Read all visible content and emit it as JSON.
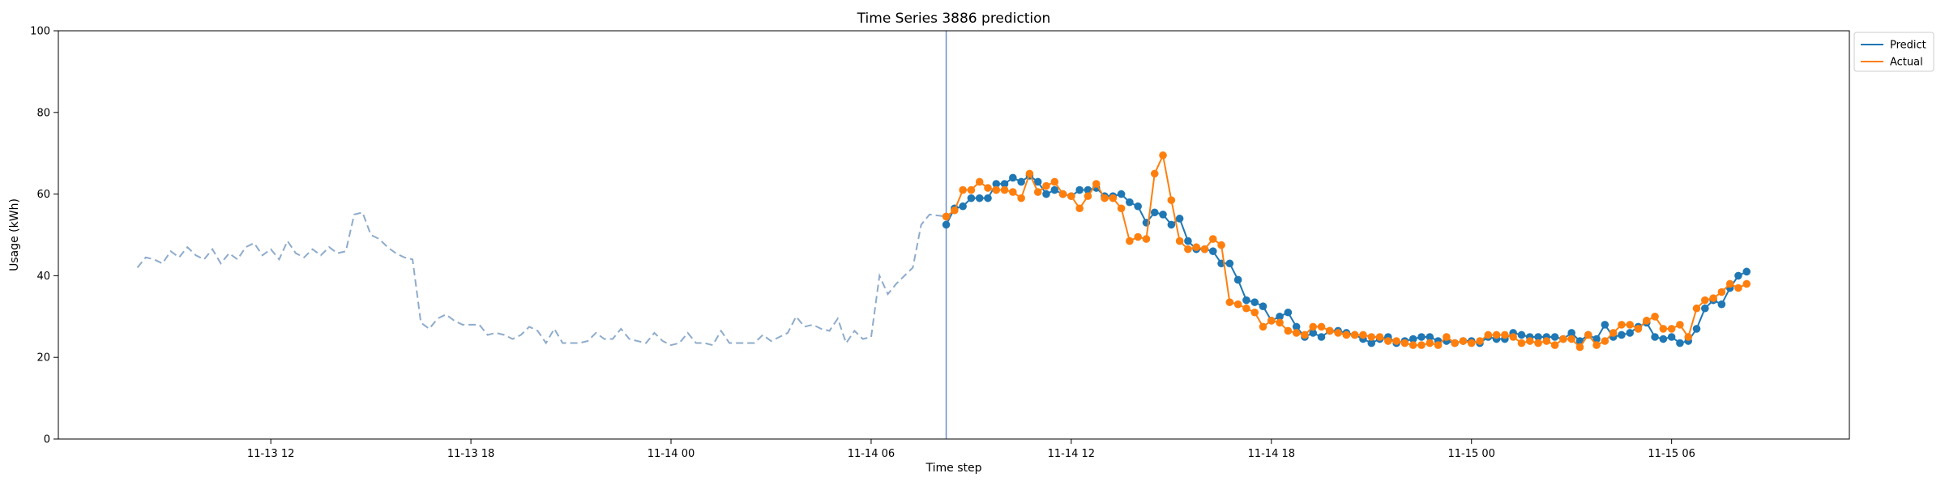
{
  "chart_data": {
    "type": "line",
    "title": "Time Series 3886 prediction",
    "xlabel": "Time step",
    "ylabel": "Usage (kWh)",
    "ylim": [
      0,
      100
    ],
    "y_ticks": [
      0,
      20,
      40,
      60,
      80,
      100
    ],
    "x_ticks": [
      {
        "label": "11-13 12",
        "hour": 12
      },
      {
        "label": "11-13 18",
        "hour": 18
      },
      {
        "label": "11-14 00",
        "hour": 24
      },
      {
        "label": "11-14 06",
        "hour": 30
      },
      {
        "label": "11-14 12",
        "hour": 36
      },
      {
        "label": "11-14 18",
        "hour": 42
      },
      {
        "label": "11-15 00",
        "hour": 48
      },
      {
        "label": "11-15 06",
        "hour": 54
      }
    ],
    "x_range_hours": [
      5.63,
      59.33
    ],
    "step_hours": 0.25,
    "forecast_start_hour": 32.25,
    "legend": {
      "placement": "outside-top-right",
      "entries": [
        "Predict",
        "Actual"
      ]
    },
    "colors": {
      "history": "#8eabcb",
      "predict": "#1f77b4",
      "actual": "#ff7f0e",
      "divider": "#6d8fc8"
    },
    "history": {
      "start_hour": 8.0,
      "step_hours": 0.25,
      "values": [
        42,
        44.5,
        44,
        43,
        46,
        44.5,
        47,
        45,
        44,
        46.5,
        43,
        45.5,
        44,
        47,
        48,
        45,
        46.5,
        44,
        48.5,
        45.5,
        44.5,
        46.5,
        45,
        47,
        45.5,
        46,
        55,
        55.5,
        50,
        49,
        47,
        45.5,
        44.5,
        44,
        28.5,
        27,
        29.5,
        30.5,
        29,
        28,
        28,
        28,
        25.5,
        26,
        25.5,
        24.5,
        25.5,
        27.5,
        26.5,
        23.5,
        27,
        23.5,
        23.5,
        23.5,
        24,
        26,
        24.5,
        24.5,
        27,
        24.5,
        24,
        23.5,
        26,
        24,
        23,
        23.5,
        26,
        23.5,
        23.5,
        23,
        26.5,
        23.5,
        23.5,
        23.5,
        23.5,
        25.5,
        24,
        25,
        26,
        30,
        27.5,
        28,
        27,
        26.5,
        29.5,
        23.5,
        26.5,
        24.5,
        25,
        40,
        35.5,
        38,
        40,
        42,
        52.5,
        55
      ]
    },
    "series": [
      {
        "name": "Predict",
        "start_hour": 32.25,
        "values": [
          52.5,
          56.5,
          57,
          59,
          59,
          59,
          62.5,
          62.5,
          64,
          63,
          64.5,
          63,
          60,
          61,
          60,
          59.5,
          61,
          61,
          61.5,
          59.5,
          59.5,
          60,
          58,
          57,
          53,
          55.5,
          55,
          52.5,
          54,
          48.5,
          46.5,
          46.5,
          46,
          43,
          43,
          39,
          34,
          33.5,
          32.5,
          29,
          30,
          31,
          27.5,
          25,
          26,
          25,
          26.5,
          26.5,
          26,
          25.5,
          24.5,
          23.5,
          24.5,
          25,
          23.5,
          24,
          24.5,
          25,
          25,
          24,
          24,
          23.5,
          24,
          24,
          23.5,
          25,
          24.5,
          24.5,
          26,
          25.5,
          25,
          25,
          25,
          25,
          24.5,
          26,
          24,
          25.5,
          24.5,
          28,
          25,
          25.5,
          26,
          27.5,
          28.5,
          25,
          24.5,
          25,
          23.5,
          24,
          27,
          32,
          34,
          33,
          37,
          40,
          41
        ]
      },
      {
        "name": "Actual",
        "start_hour": 32.25,
        "values": [
          54.5,
          56,
          61,
          61,
          63,
          61.5,
          61,
          61,
          60.5,
          59,
          65,
          60.5,
          62,
          63,
          60,
          59.5,
          56.5,
          59.5,
          62.5,
          59,
          59,
          56.5,
          48.5,
          49.5,
          49,
          65,
          69.5,
          58.5,
          48.5,
          46.5,
          47,
          46.5,
          49,
          47.5,
          33.5,
          33,
          32,
          31,
          27.5,
          29,
          28.5,
          26.5,
          26,
          25.5,
          27.5,
          27.5,
          26.5,
          26,
          25.5,
          25.5,
          25.5,
          25,
          25,
          24,
          24,
          23.5,
          23,
          23,
          23.5,
          23,
          25,
          23.5,
          24,
          23.5,
          24,
          25.5,
          25.5,
          25.5,
          25,
          23.5,
          24,
          23.5,
          24,
          23,
          24.5,
          24.5,
          22.5,
          25.5,
          23,
          24,
          26,
          28,
          28,
          27,
          29,
          30,
          27,
          27,
          28,
          25,
          32,
          34,
          34.5,
          36,
          38,
          37,
          38
        ]
      }
    ]
  }
}
